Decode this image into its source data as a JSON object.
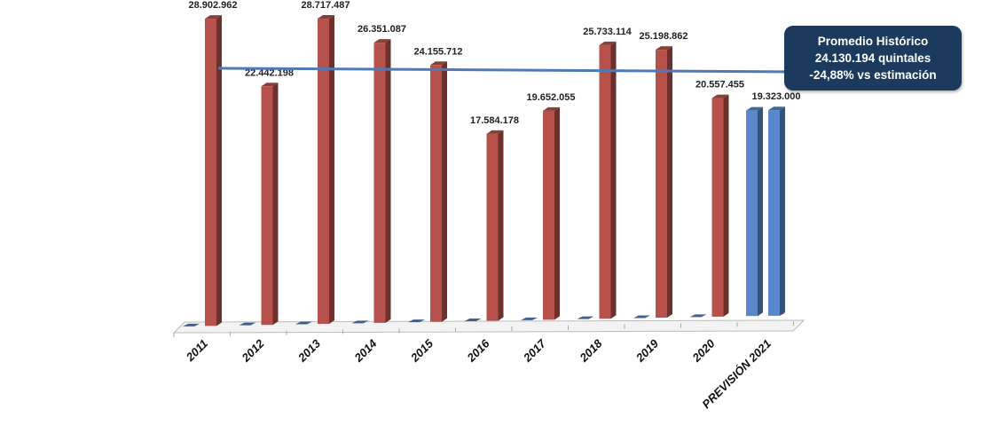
{
  "chart_data": {
    "type": "bar",
    "categories": [
      "2011",
      "2012",
      "2013",
      "2014",
      "2015",
      "2016",
      "2017",
      "2018",
      "2019",
      "2020",
      "PREVISIÓN 2021"
    ],
    "series": [
      {
        "name": "Histórico",
        "color": "#b6524b",
        "values": [
          28902962,
          22442198,
          28717487,
          26351087,
          24155712,
          17584178,
          19652055,
          25733114,
          25198862,
          20557455,
          0
        ]
      },
      {
        "name": "Previsión",
        "color": "#5b88cc",
        "values": [
          0,
          0,
          0,
          0,
          0,
          0,
          0,
          0,
          0,
          0,
          19323000
        ]
      }
    ],
    "data_labels": [
      "28.902.962",
      "22.442.198",
      "28.717.487",
      "26.351.087",
      "24.155.712",
      "17.584.178",
      "19.652.055",
      "25.733.114",
      "25.198.862",
      "20.557.455",
      "19.323.000"
    ],
    "reference_line": {
      "value": 24130194,
      "color": "#4f79b8"
    },
    "ylim": [
      0,
      29500000
    ],
    "grid": false,
    "title": "",
    "xlabel": "",
    "ylabel": ""
  },
  "callout": {
    "line1": "Promedio Histórico",
    "line2": "24.130.194 quintales",
    "line3": "-24,88% vs estimación"
  }
}
